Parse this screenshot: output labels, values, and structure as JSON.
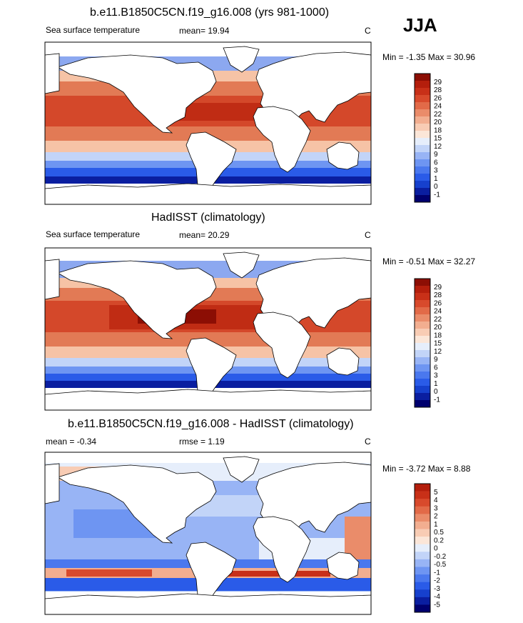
{
  "season": "JJA",
  "colorbar_colors": {
    "main": [
      "#00006e",
      "#0a1ea0",
      "#1640cd",
      "#2a5be8",
      "#4a78ee",
      "#6e95f2",
      "#98b4f5",
      "#c2d4f8",
      "#e6eefb",
      "#fbe6d8",
      "#f8ccb4",
      "#f2ae90",
      "#ea8c6a",
      "#e26a48",
      "#d84a2c",
      "#c83018",
      "#b41e0c",
      "#8c0e04"
    ],
    "diff": [
      "#00006e",
      "#0a1ea0",
      "#1640cd",
      "#2a5be8",
      "#4a78ee",
      "#6e95f2",
      "#98b4f5",
      "#c2d4f8",
      "#e6eefb",
      "#fbe6d8",
      "#f8ccb4",
      "#f2ae90",
      "#ea8c6a",
      "#e26a48",
      "#d84a2c",
      "#c83018",
      "#b41e0c"
    ]
  },
  "panels": [
    {
      "title": "b.e11.B1850C5CN.f19_g16.008 (yrs 981-1000)",
      "variable": "Sea surface temperature",
      "stat1": "mean=  19.94",
      "stat2": "",
      "units": "C",
      "minmax": "Min =  -1.35 Max =  30.96",
      "levels": [
        "29",
        "28",
        "26",
        "24",
        "22",
        "20",
        "18",
        "15",
        "12",
        "9",
        "6",
        "3",
        "1",
        "0",
        "-1"
      ]
    },
    {
      "title": "HadISST (climatology)",
      "variable": "Sea surface temperature",
      "stat1": "mean=  20.29",
      "stat2": "",
      "units": "C",
      "minmax": "Min =  -0.51 Max =  32.27",
      "levels": [
        "29",
        "28",
        "26",
        "24",
        "22",
        "20",
        "18",
        "15",
        "12",
        "9",
        "6",
        "3",
        "1",
        "0",
        "-1"
      ]
    },
    {
      "title": "b.e11.B1850C5CN.f19_g16.008 - HadISST (climatology)",
      "variable": "",
      "stat1": "mean =  -0.34",
      "stat2": "rmse =   1.19",
      "units": "C",
      "minmax": "Min =  -3.72 Max =   8.88",
      "levels": [
        "5",
        "4",
        "3",
        "2",
        "1",
        "0.5",
        "0.2",
        "0",
        "-0.2",
        "-0.5",
        "-1",
        "-2",
        "-3",
        "-4",
        "-5"
      ]
    }
  ],
  "chart_data": [
    {
      "type": "heatmap",
      "title": "b.e11.B1850C5CN.f19_g16.008 (yrs 981-1000)",
      "variable": "Sea surface temperature",
      "units": "C",
      "mean": 19.94,
      "min": -1.35,
      "max": 30.96,
      "contour_levels": [
        -1,
        0,
        1,
        3,
        6,
        9,
        12,
        15,
        18,
        20,
        22,
        24,
        26,
        28,
        29
      ],
      "projection": "cylindrical equidistant, global"
    },
    {
      "type": "heatmap",
      "title": "HadISST (climatology)",
      "variable": "Sea surface temperature",
      "units": "C",
      "mean": 20.29,
      "min": -0.51,
      "max": 32.27,
      "contour_levels": [
        -1,
        0,
        1,
        3,
        6,
        9,
        12,
        15,
        18,
        20,
        22,
        24,
        26,
        28,
        29
      ],
      "projection": "cylindrical equidistant, global"
    },
    {
      "type": "heatmap",
      "title": "b.e11.B1850C5CN.f19_g16.008 - HadISST (climatology)",
      "units": "C",
      "mean": -0.34,
      "rmse": 1.19,
      "min": -3.72,
      "max": 8.88,
      "contour_levels": [
        -5,
        -4,
        -3,
        -2,
        -1,
        -0.5,
        -0.2,
        0,
        0.2,
        0.5,
        1,
        2,
        3,
        4,
        5
      ],
      "projection": "cylindrical equidistant, global"
    }
  ]
}
